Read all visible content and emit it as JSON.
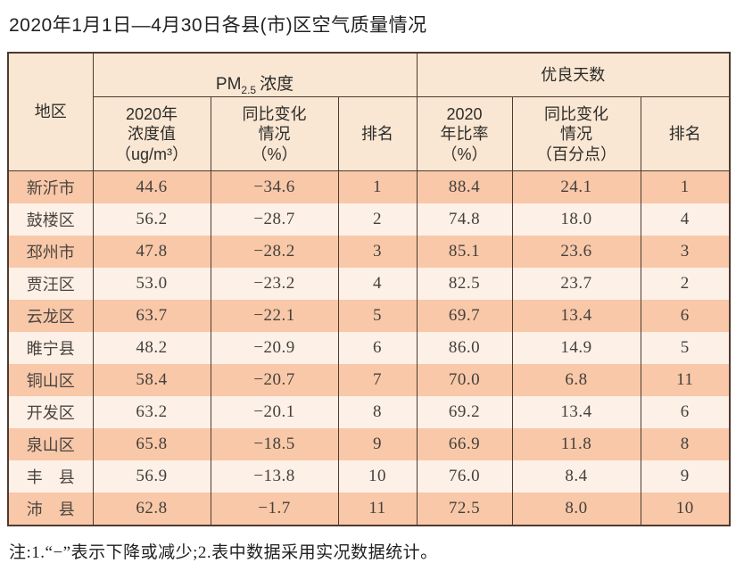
{
  "title": "2020年1月1日—4月30日各县(市)区空气质量情况",
  "table": {
    "region_header": "地区",
    "pm_group": {
      "prefix": "PM",
      "subscript": "2.5",
      "suffix": "浓度"
    },
    "good_group": {
      "label": "优良天数"
    },
    "subheaders": {
      "pm_value": "2020年\n浓度值\n（ug/m³）",
      "pm_change": "同比变化\n情况\n（%）",
      "pm_rank": "排名",
      "good_rate": "2020\n年比率\n（%）",
      "good_change": "同比变化\n情况\n（百分点）",
      "good_rank": "排名"
    },
    "rows": [
      {
        "region": "新沂市",
        "pm_value": "44.6",
        "pm_change": "−34.6",
        "pm_rank": "1",
        "good_rate": "88.4",
        "good_change": "24.1",
        "good_rank": "1"
      },
      {
        "region": "鼓楼区",
        "pm_value": "56.2",
        "pm_change": "−28.7",
        "pm_rank": "2",
        "good_rate": "74.8",
        "good_change": "18.0",
        "good_rank": "4"
      },
      {
        "region": "邳州市",
        "pm_value": "47.8",
        "pm_change": "−28.2",
        "pm_rank": "3",
        "good_rate": "85.1",
        "good_change": "23.6",
        "good_rank": "3"
      },
      {
        "region": "贾汪区",
        "pm_value": "53.0",
        "pm_change": "−23.2",
        "pm_rank": "4",
        "good_rate": "82.5",
        "good_change": "23.7",
        "good_rank": "2"
      },
      {
        "region": "云龙区",
        "pm_value": "63.7",
        "pm_change": "−22.1",
        "pm_rank": "5",
        "good_rate": "69.7",
        "good_change": "13.4",
        "good_rank": "6"
      },
      {
        "region": "睢宁县",
        "pm_value": "48.2",
        "pm_change": "−20.9",
        "pm_rank": "6",
        "good_rate": "86.0",
        "good_change": "14.9",
        "good_rank": "5"
      },
      {
        "region": "铜山区",
        "pm_value": "58.4",
        "pm_change": "−20.7",
        "pm_rank": "7",
        "good_rate": "70.0",
        "good_change": "6.8",
        "good_rank": "11"
      },
      {
        "region": "开发区",
        "pm_value": "63.2",
        "pm_change": "−20.1",
        "pm_rank": "8",
        "good_rate": "69.2",
        "good_change": "13.4",
        "good_rank": "6"
      },
      {
        "region": "泉山区",
        "pm_value": "65.8",
        "pm_change": "−18.5",
        "pm_rank": "9",
        "good_rate": "66.9",
        "good_change": "11.8",
        "good_rank": "8"
      },
      {
        "region": "丰　县",
        "pm_value": "56.9",
        "pm_change": "−13.8",
        "pm_rank": "10",
        "good_rate": "76.0",
        "good_change": "8.4",
        "good_rank": "9"
      },
      {
        "region": "沛　县",
        "pm_value": "62.8",
        "pm_change": "−1.7",
        "pm_rank": "11",
        "good_rate": "72.5",
        "good_change": "8.0",
        "good_rank": "10"
      }
    ]
  },
  "note": "注:1.“−”表示下降或减少;2.表中数据采用实况数据统计。",
  "colors": {
    "row_odd": "#f8c8a9",
    "row_even": "#fdf0e7",
    "header_bg": "#f9e7d3",
    "border": "#4f3a30"
  }
}
